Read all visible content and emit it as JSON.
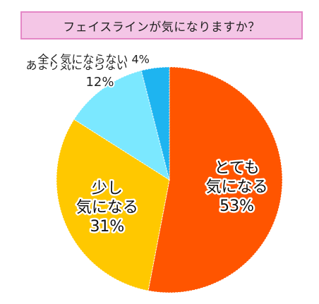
{
  "title": "フェイスラインが気になりますか？",
  "chart_data": {
    "type": "pie",
    "title": "フェイスラインが気になりますか？",
    "slices": [
      {
        "lines": [
          "とても",
          "気になる"
        ],
        "pct": "53%",
        "value": 53,
        "color": "#ff5500",
        "label_style": "outlined"
      },
      {
        "lines": [
          "少し",
          "気になる"
        ],
        "pct": "31%",
        "value": 31,
        "color": "#ffc800",
        "label_style": "outlined"
      },
      {
        "lines": [
          "あまり気にならない"
        ],
        "pct": "12%",
        "value": 12,
        "color": "#7be8ff",
        "label_style": "outside"
      },
      {
        "lines": [
          "全く気にならない"
        ],
        "pct": "4%",
        "value": 4,
        "color": "#1eb4f0",
        "label_style": "outside-inline"
      }
    ]
  }
}
